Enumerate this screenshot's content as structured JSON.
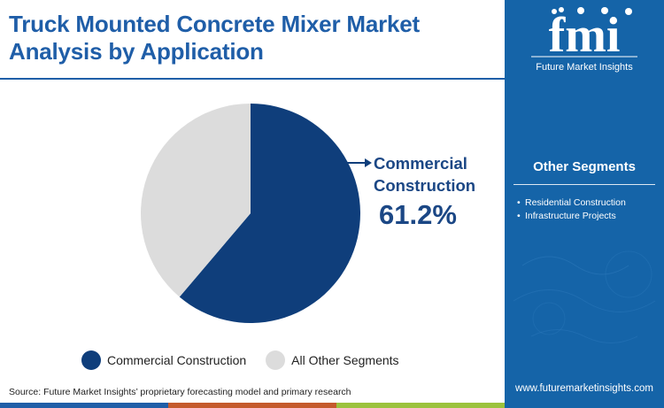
{
  "title": "Truck Mounted Concrete Mixer Market Analysis by Application",
  "logo": {
    "brand": "fmi",
    "caption": "Future Market Insights"
  },
  "sidebar": {
    "heading": "Other Segments",
    "items": [
      "Residential Construction",
      "Infrastructure Projects"
    ],
    "website": "www.futuremarketinsights.com"
  },
  "callout": {
    "label": "Commercial Construction",
    "value": "61.2%"
  },
  "source": "Source: Future Market Insights’ proprietary forecasting model and primary research",
  "colors": {
    "primary": "#1f5ea8",
    "commercial": "#0f3e7b",
    "other": "#dcdcdc",
    "sidebar": "#1564a8",
    "bar": [
      "#1f5ea8",
      "#c45a2c",
      "#9bc23c"
    ]
  },
  "chart_data": {
    "type": "pie",
    "slices": [
      {
        "label": "Commercial Construction",
        "value": 61.2,
        "color": "#0f3e7b"
      },
      {
        "label": "All Other Segments",
        "value": 38.8,
        "color": "#dcdcdc"
      }
    ],
    "start_angle_deg": 0,
    "direction": "clockwise",
    "legend_position": "bottom"
  }
}
